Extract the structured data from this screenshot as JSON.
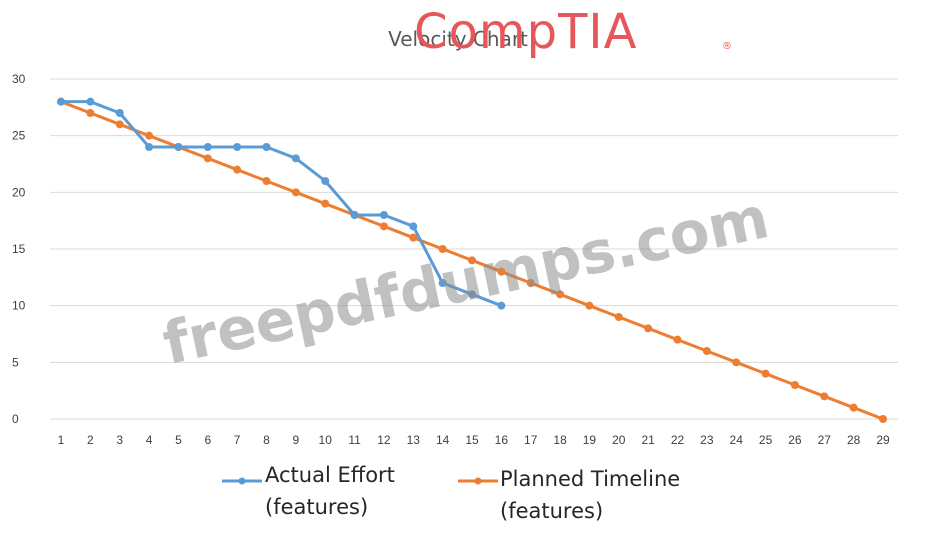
{
  "brand": {
    "logo_text": "CompTIA",
    "registered_mark": "®"
  },
  "watermark": {
    "text": "freepdfdumps.com"
  },
  "chart_data": {
    "type": "line",
    "title": "Velocity Chart",
    "xlabel": "",
    "ylabel": "",
    "x": [
      1,
      2,
      3,
      4,
      5,
      6,
      7,
      8,
      9,
      10,
      11,
      12,
      13,
      14,
      15,
      16,
      17,
      18,
      19,
      20,
      21,
      22,
      23,
      24,
      25,
      26,
      27,
      28,
      29
    ],
    "xlim": [
      1,
      29
    ],
    "ylim": [
      0,
      30
    ],
    "yticks": [
      0,
      5,
      10,
      15,
      20,
      25,
      30
    ],
    "grid": true,
    "legend_position": "bottom",
    "series": [
      {
        "name": "Actual Effort (features)",
        "legend_lines": [
          "Actual Effort",
          "(features)"
        ],
        "color": "#5b9bd5",
        "x": [
          1,
          2,
          3,
          4,
          5,
          6,
          7,
          8,
          9,
          10,
          11,
          12,
          13,
          14,
          15,
          16
        ],
        "values": [
          28,
          28,
          27,
          24,
          24,
          24,
          24,
          24,
          23,
          21,
          18,
          18,
          17,
          12,
          11,
          10
        ]
      },
      {
        "name": "Planned Timeline (features)",
        "legend_lines": [
          "Planned Timeline",
          "(features)"
        ],
        "color": "#ed7d31",
        "x": [
          1,
          2,
          3,
          4,
          5,
          6,
          7,
          8,
          9,
          10,
          11,
          12,
          13,
          14,
          15,
          16,
          17,
          18,
          19,
          20,
          21,
          22,
          23,
          24,
          25,
          26,
          27,
          28,
          29
        ],
        "values": [
          28,
          27,
          26,
          25,
          24,
          23,
          22,
          21,
          20,
          19,
          18,
          17,
          16,
          15,
          14,
          13,
          12,
          11,
          10,
          9,
          8,
          7,
          6,
          5,
          4,
          3,
          2,
          1,
          0
        ]
      }
    ]
  }
}
